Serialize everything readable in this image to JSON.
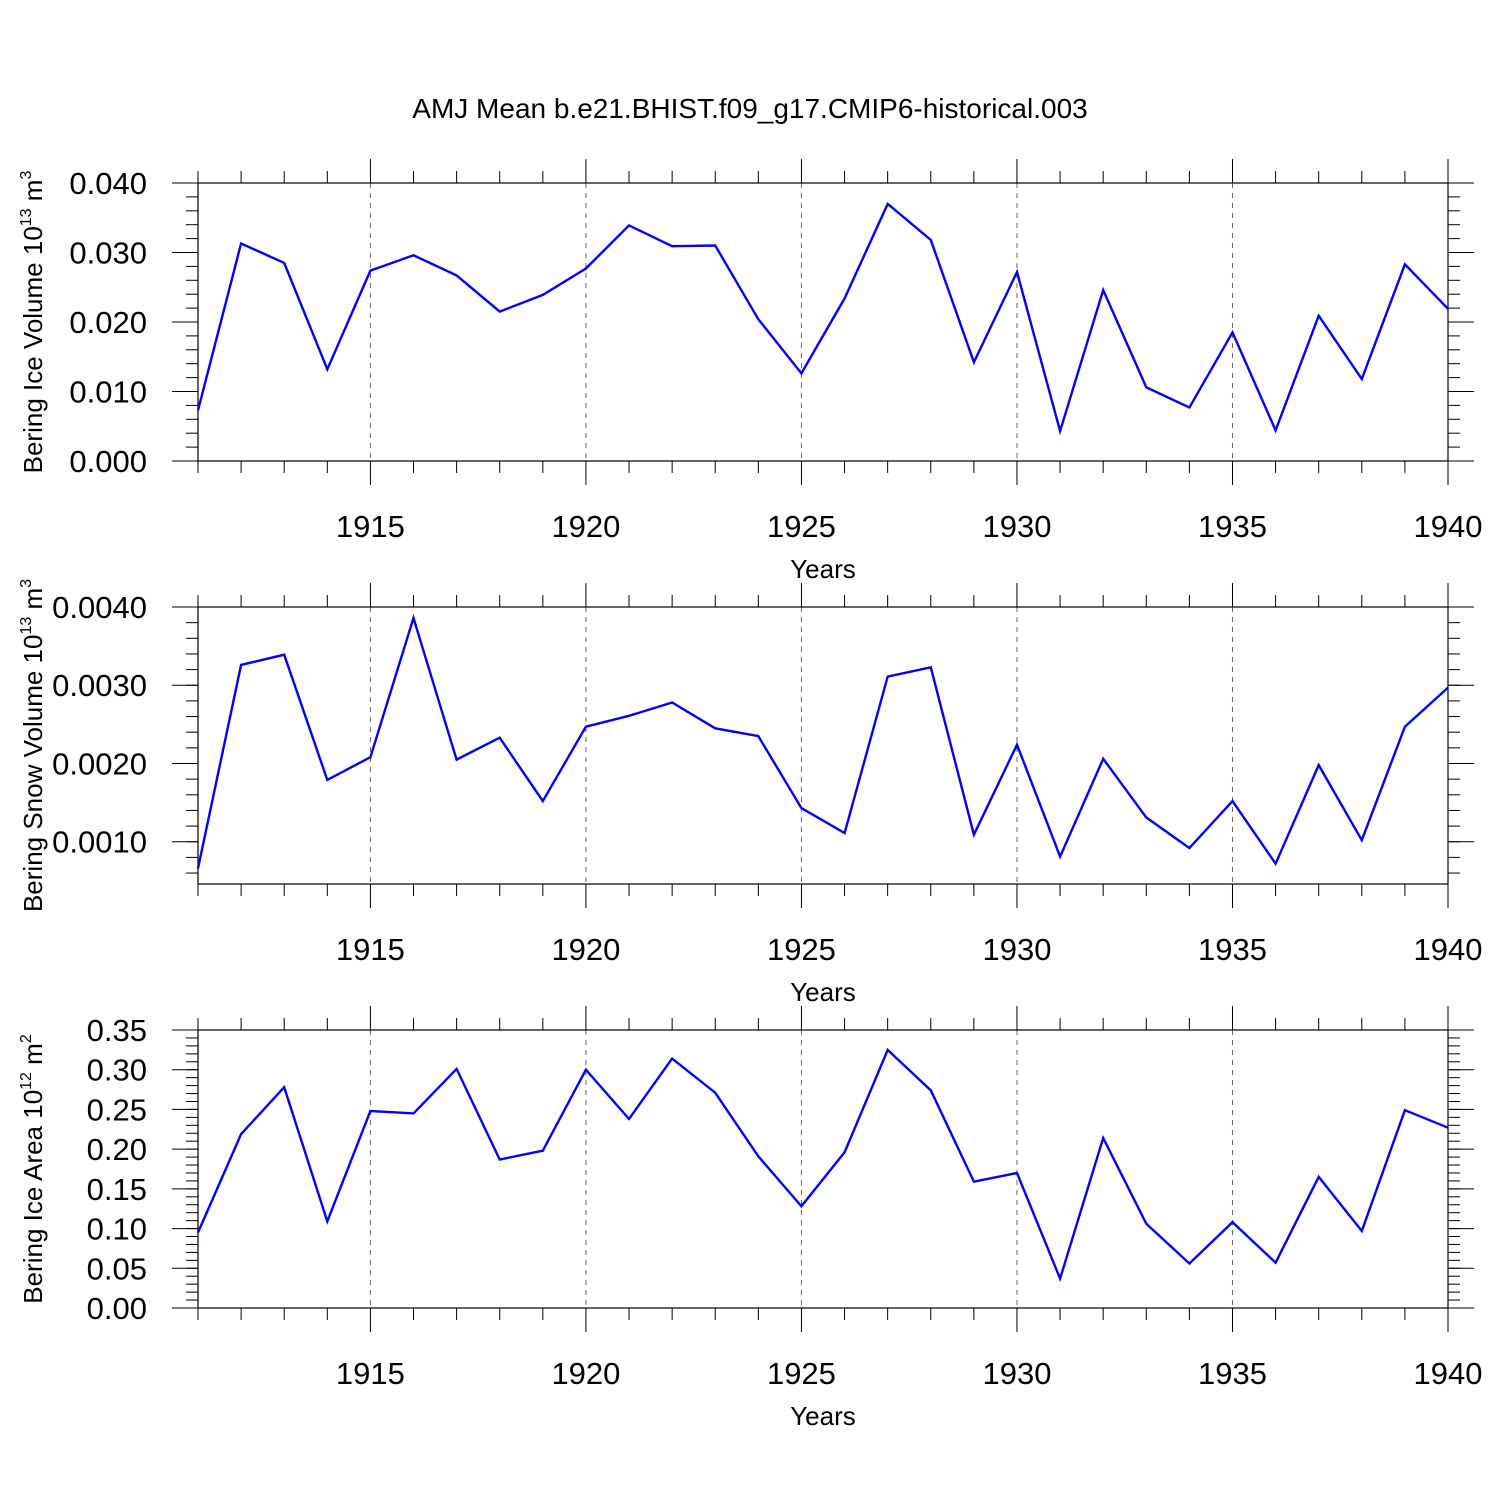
{
  "title": "AMJ Mean b.e21.BHIST.f09_g17.CMIP6-historical.003",
  "line_color": "#0000ff",
  "chart_data": [
    {
      "type": "line",
      "id": "ice-volume",
      "ylabel_main": "Bering Ice Volume 10",
      "ylabel_exp": "13",
      "ylabel_unit": " m",
      "ylabel_unit_exp": "3",
      "xlabel": "Years",
      "xlim": [
        1911,
        1940
      ],
      "ylim": [
        0.0,
        0.04
      ],
      "xticks": [
        1915,
        1920,
        1925,
        1930,
        1935,
        1940
      ],
      "yticks": [
        "0.000",
        "0.010",
        "0.020",
        "0.030",
        "0.040"
      ],
      "ytick_values": [
        0.0,
        0.01,
        0.02,
        0.03,
        0.04
      ],
      "ytick_minor": 0.002,
      "grid": "vertical dashed at major x ticks",
      "x": [
        1911,
        1912,
        1913,
        1914,
        1915,
        1916,
        1917,
        1918,
        1919,
        1920,
        1921,
        1922,
        1923,
        1924,
        1925,
        1926,
        1927,
        1928,
        1929,
        1930,
        1931,
        1932,
        1933,
        1934,
        1935,
        1936,
        1937,
        1938,
        1939,
        1940
      ],
      "series": [
        {
          "name": "Bering Ice Volume",
          "values": [
            0.0073,
            0.0313,
            0.0285,
            0.0132,
            0.0274,
            0.0296,
            0.0267,
            0.0215,
            0.0239,
            0.0277,
            0.0339,
            0.0309,
            0.031,
            0.0204,
            0.0126,
            0.0234,
            0.037,
            0.0318,
            0.0142,
            0.0272,
            0.0043,
            0.0246,
            0.0106,
            0.0077,
            0.0185,
            0.0044,
            0.0209,
            0.0118,
            0.0283,
            0.0219
          ]
        }
      ]
    },
    {
      "type": "line",
      "id": "snow-volume",
      "ylabel_main": "Bering Snow Volume 10",
      "ylabel_exp": "13",
      "ylabel_unit": " m",
      "ylabel_unit_exp": "3",
      "xlabel": "Years",
      "xlim": [
        1911,
        1940
      ],
      "ylim": [
        0.00046,
        0.004
      ],
      "xticks": [
        1915,
        1920,
        1925,
        1930,
        1935,
        1940
      ],
      "yticks": [
        "0.0010",
        "0.0020",
        "0.0030",
        "0.0040"
      ],
      "ytick_values": [
        0.001,
        0.002,
        0.003,
        0.004
      ],
      "ytick_minor": 0.0002,
      "grid": "vertical dashed at major x ticks",
      "x": [
        1911,
        1912,
        1913,
        1914,
        1915,
        1916,
        1917,
        1918,
        1919,
        1920,
        1921,
        1922,
        1923,
        1924,
        1925,
        1926,
        1927,
        1928,
        1929,
        1930,
        1931,
        1932,
        1933,
        1934,
        1935,
        1936,
        1937,
        1938,
        1939,
        1940
      ],
      "series": [
        {
          "name": "Bering Snow Volume",
          "values": [
            0.00066,
            0.00326,
            0.00339,
            0.00179,
            0.00208,
            0.00386,
            0.00205,
            0.00233,
            0.00152,
            0.00247,
            0.00261,
            0.00278,
            0.00245,
            0.00235,
            0.00143,
            0.00111,
            0.00311,
            0.00323,
            0.00109,
            0.00224,
            0.00081,
            0.00206,
            0.00131,
            0.00092,
            0.00152,
            0.00072,
            0.00198,
            0.00102,
            0.00247,
            0.00297
          ]
        }
      ]
    },
    {
      "type": "line",
      "id": "ice-area",
      "ylabel_main": "Bering Ice Area 10",
      "ylabel_exp": "12",
      "ylabel_unit": " m",
      "ylabel_unit_exp": "2",
      "xlabel": "Years",
      "xlim": [
        1911,
        1940
      ],
      "ylim": [
        0.0,
        0.35
      ],
      "xticks": [
        1915,
        1920,
        1925,
        1930,
        1935,
        1940
      ],
      "yticks": [
        "0.00",
        "0.05",
        "0.10",
        "0.15",
        "0.20",
        "0.25",
        "0.30",
        "0.35"
      ],
      "ytick_values": [
        0.0,
        0.05,
        0.1,
        0.15,
        0.2,
        0.25,
        0.3,
        0.35
      ],
      "ytick_minor": 0.01,
      "grid": "vertical dashed at major x ticks",
      "x": [
        1911,
        1912,
        1913,
        1914,
        1915,
        1916,
        1917,
        1918,
        1919,
        1920,
        1921,
        1922,
        1923,
        1924,
        1925,
        1926,
        1927,
        1928,
        1929,
        1930,
        1931,
        1932,
        1933,
        1934,
        1935,
        1936,
        1937,
        1938,
        1939,
        1940
      ],
      "series": [
        {
          "name": "Bering Ice Area",
          "values": [
            0.095,
            0.219,
            0.278,
            0.109,
            0.248,
            0.245,
            0.301,
            0.187,
            0.198,
            0.3,
            0.238,
            0.314,
            0.271,
            0.191,
            0.128,
            0.196,
            0.325,
            0.274,
            0.159,
            0.17,
            0.037,
            0.214,
            0.106,
            0.056,
            0.108,
            0.057,
            0.165,
            0.097,
            0.249,
            0.227
          ]
        }
      ]
    }
  ]
}
